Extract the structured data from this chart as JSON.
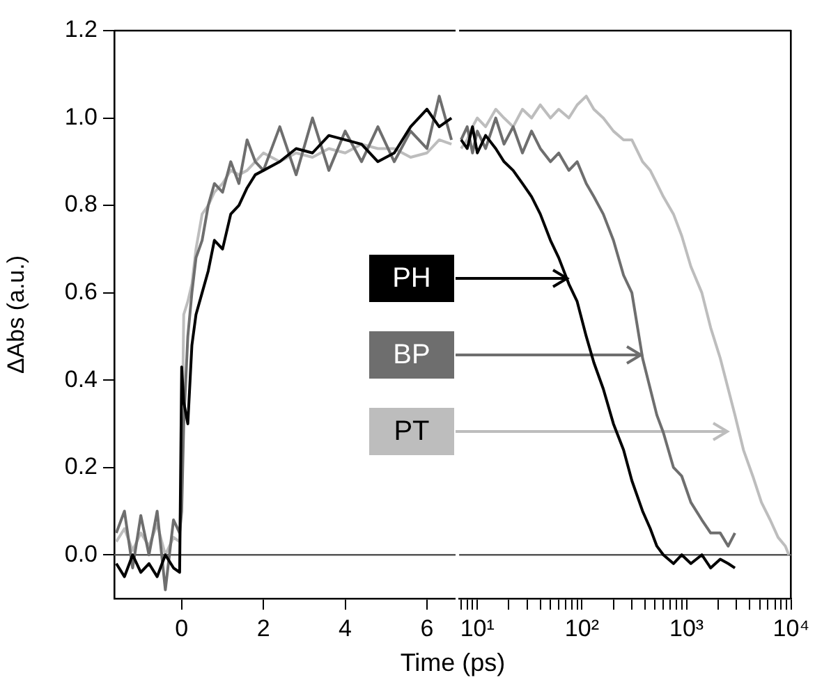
{
  "chart_data": [
    {
      "type": "line",
      "xlabel": "Time (ps)",
      "ylabel": "ΔAbs (a.u.)",
      "legend": "right",
      "xlim": [
        -1.65,
        6.7
      ],
      "xticks": [
        0,
        2,
        4,
        6
      ],
      "ylim": [
        -0.1,
        1.2
      ],
      "yticks": [
        {
          "value": 0,
          "label": "0.0"
        },
        {
          "value": 0.2,
          "label": "0.2"
        },
        {
          "value": 0.4,
          "label": "0.4"
        },
        {
          "value": 0.6,
          "label": "0.6"
        },
        {
          "value": 0.8,
          "label": "0.8"
        },
        {
          "value": 1,
          "label": "1.0"
        },
        {
          "value": 1.2,
          "label": "1.2"
        }
      ],
      "x": [
        -1.6,
        -1.4,
        -1.2,
        -1.0,
        -0.8,
        -0.6,
        -0.4,
        -0.2,
        -0.05,
        0.0,
        0.05,
        0.15,
        0.25,
        0.35,
        0.5,
        0.65,
        0.8,
        1.0,
        1.2,
        1.4,
        1.6,
        1.8,
        2.0,
        2.4,
        2.8,
        3.2,
        3.6,
        4.0,
        4.4,
        4.8,
        5.2,
        5.6,
        6.0,
        6.3,
        6.6
      ],
      "series": [
        {
          "name": "PH",
          "color": "#000000",
          "values": [
            -0.02,
            -0.05,
            0.0,
            -0.04,
            -0.02,
            -0.05,
            0.0,
            -0.03,
            -0.04,
            0.43,
            0.35,
            0.3,
            0.48,
            0.55,
            0.6,
            0.65,
            0.72,
            0.7,
            0.78,
            0.8,
            0.84,
            0.87,
            0.88,
            0.9,
            0.93,
            0.92,
            0.96,
            0.95,
            0.94,
            0.9,
            0.92,
            0.98,
            1.02,
            0.98,
            1.0
          ]
        },
        {
          "name": "BP",
          "color": "#6e6e6e",
          "values": [
            0.05,
            0.1,
            -0.03,
            0.09,
            0.0,
            0.1,
            -0.08,
            0.08,
            0.05,
            0.1,
            0.3,
            0.5,
            0.6,
            0.68,
            0.72,
            0.8,
            0.85,
            0.83,
            0.9,
            0.85,
            0.95,
            0.9,
            0.88,
            0.98,
            0.87,
            1.0,
            0.88,
            0.97,
            0.9,
            0.98,
            0.9,
            0.97,
            0.93,
            1.05,
            0.95
          ]
        },
        {
          "name": "PT",
          "color": "#bdbdbd",
          "values": [
            0.03,
            0.06,
            0.01,
            0.05,
            0.02,
            0.07,
            0.0,
            0.04,
            0.03,
            0.2,
            0.55,
            0.58,
            0.62,
            0.7,
            0.78,
            0.8,
            0.83,
            0.85,
            0.88,
            0.87,
            0.88,
            0.9,
            0.92,
            0.9,
            0.92,
            0.91,
            0.93,
            0.92,
            0.94,
            0.93,
            0.93,
            0.91,
            0.92,
            0.95,
            0.94
          ]
        }
      ],
      "ref_lines": [
        {
          "axis": "y",
          "value": 0,
          "color": "#555555"
        }
      ]
    },
    {
      "type": "line",
      "log": "x",
      "tick_labels": "x",
      "xlim": [
        6.7,
        10000
      ],
      "xticks": [
        {
          "value": 7,
          "label": null
        },
        {
          "value": 8,
          "label": null
        },
        {
          "value": 9,
          "label": null
        },
        {
          "value": 10,
          "label": "10¹"
        },
        {
          "value": 20,
          "label": null
        },
        {
          "value": 30,
          "label": null
        },
        {
          "value": 40,
          "label": null
        },
        {
          "value": 50,
          "label": null
        },
        {
          "value": 60,
          "label": null
        },
        {
          "value": 70,
          "label": null
        },
        {
          "value": 80,
          "label": null
        },
        {
          "value": 90,
          "label": null
        },
        {
          "value": 100,
          "label": "10²"
        },
        {
          "value": 200,
          "label": null
        },
        {
          "value": 300,
          "label": null
        },
        {
          "value": 400,
          "label": null
        },
        {
          "value": 500,
          "label": null
        },
        {
          "value": 600,
          "label": null
        },
        {
          "value": 700,
          "label": null
        },
        {
          "value": 800,
          "label": null
        },
        {
          "value": 900,
          "label": null
        },
        {
          "value": 1000,
          "label": "10³"
        },
        {
          "value": 2000,
          "label": null
        },
        {
          "value": 3000,
          "label": null
        },
        {
          "value": 4000,
          "label": null
        },
        {
          "value": 5000,
          "label": null
        },
        {
          "value": 6000,
          "label": null
        },
        {
          "value": 7000,
          "label": null
        },
        {
          "value": 8000,
          "label": null
        },
        {
          "value": 9000,
          "label": null
        },
        {
          "value": 10000,
          "label": "10⁴"
        }
      ],
      "ylim": [
        -0.1,
        1.2
      ],
      "x": [
        7,
        8,
        9,
        10,
        12,
        15,
        18,
        22,
        27,
        33,
        40,
        50,
        60,
        75,
        90,
        110,
        130,
        160,
        200,
        250,
        300,
        380,
        450,
        520,
        600,
        750,
        900,
        1100,
        1400,
        1700,
        2100,
        2500,
        2900,
        3500,
        4300,
        5200,
        6300,
        7500,
        8800,
        9500
      ],
      "series": [
        {
          "color": "#000000",
          "values": [
            0.95,
            0.93,
            0.98,
            0.92,
            0.96,
            0.93,
            0.9,
            0.88,
            0.85,
            0.82,
            0.78,
            0.72,
            0.68,
            0.62,
            0.58,
            0.5,
            0.44,
            0.38,
            0.3,
            0.24,
            0.17,
            0.1,
            0.06,
            0.02,
            0.0,
            -0.02,
            0.0,
            -0.02,
            0.0,
            -0.03,
            -0.01,
            -0.02,
            -0.03,
            null,
            null,
            null,
            null,
            null,
            null,
            null
          ]
        },
        {
          "color": "#6e6e6e",
          "values": [
            0.95,
            0.98,
            0.92,
            0.97,
            0.93,
            1.0,
            0.94,
            0.98,
            0.92,
            0.97,
            0.93,
            0.9,
            0.92,
            0.88,
            0.9,
            0.85,
            0.82,
            0.78,
            0.72,
            0.64,
            0.6,
            0.45,
            0.38,
            0.32,
            0.28,
            0.2,
            0.18,
            0.12,
            0.08,
            0.05,
            0.05,
            0.02,
            0.05,
            null,
            null,
            null,
            null,
            null,
            null,
            null
          ]
        },
        {
          "color": "#bdbdbd",
          "values": [
            0.93,
            0.95,
            0.98,
            1.0,
            0.98,
            1.02,
            1.0,
            0.98,
            1.02,
            1.0,
            1.03,
            1.0,
            1.02,
            1.0,
            1.03,
            1.05,
            1.02,
            1.0,
            0.97,
            0.95,
            0.95,
            0.9,
            0.88,
            0.85,
            0.82,
            0.78,
            0.73,
            0.66,
            0.6,
            0.52,
            0.45,
            0.38,
            0.32,
            0.24,
            0.18,
            0.12,
            0.08,
            0.04,
            0.02,
            0.0
          ]
        }
      ],
      "ref_lines": [
        {
          "axis": "y",
          "value": 0,
          "color": "#555555"
        }
      ]
    }
  ]
}
